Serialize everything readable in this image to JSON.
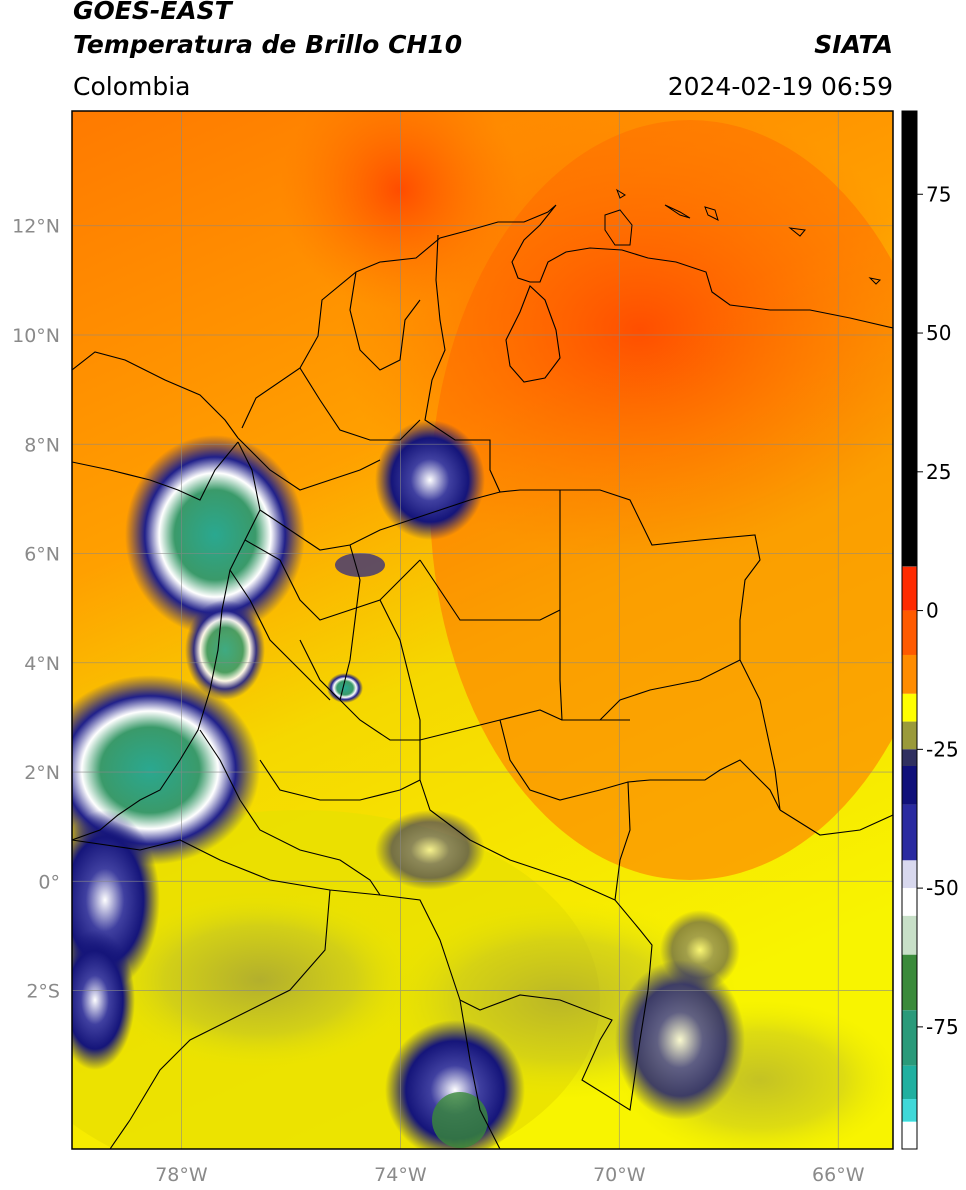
{
  "header": {
    "satellite": "GOES-EAST",
    "product": "Temperatura de Brillo CH10",
    "region": "Colombia",
    "agency": "SIATA",
    "datetime": "2024-02-19 06:59"
  },
  "map": {
    "lon_range": [
      -80,
      -65
    ],
    "lat_range": [
      -4.9,
      14.1
    ],
    "lat_ticks": [
      {
        "lat": 12,
        "label": "12°N"
      },
      {
        "lat": 10,
        "label": "10°N"
      },
      {
        "lat": 8,
        "label": "8°N"
      },
      {
        "lat": 6,
        "label": "6°N"
      },
      {
        "lat": 4,
        "label": "4°N"
      },
      {
        "lat": 2,
        "label": "2°N"
      },
      {
        "lat": 0,
        "label": "0°"
      },
      {
        "lat": -2,
        "label": "2°S"
      }
    ],
    "lon_ticks": [
      {
        "lon": -78,
        "label": "78°W"
      },
      {
        "lon": -74,
        "label": "74°W"
      },
      {
        "lon": -70,
        "label": "70°W"
      },
      {
        "lon": -66,
        "label": "66°W"
      }
    ],
    "gridlines": true
  },
  "colorbar": {
    "range": [
      -97,
      90
    ],
    "ticks": [
      {
        "value": 75,
        "label": "75"
      },
      {
        "value": 50,
        "label": "50"
      },
      {
        "value": 25,
        "label": "25"
      },
      {
        "value": 0,
        "label": "0"
      },
      {
        "value": -25,
        "label": "-25"
      },
      {
        "value": -50,
        "label": "-50"
      },
      {
        "value": -75,
        "label": "-75"
      }
    ],
    "colors": {
      "black": "#000000",
      "red": "#ff2a00",
      "orange": "#ff8c00",
      "yellow": "#ffff00",
      "olive": "#9a9a3a",
      "navy": "#10107a",
      "white": "#ffffff",
      "green": "#3a8a3a",
      "teal": "#20b0a0",
      "cyan": "#00e8e8"
    }
  }
}
